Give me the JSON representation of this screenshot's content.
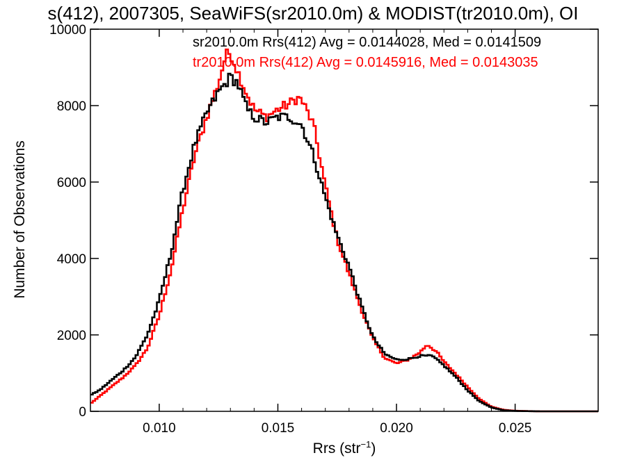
{
  "chart_data": {
    "type": "line",
    "title": "s(412), 2007305, SeaWiFS(sr2010.0m) & MODIST(tr2010.0m), OI",
    "xlabel": "Rrs (str",
    "xlabel_sup": "−1",
    "xlabel_close": ")",
    "ylabel": "Number of Observations",
    "xlim": [
      0.0071,
      0.0285
    ],
    "ylim": [
      0,
      10000
    ],
    "x_ticks": [
      {
        "value": 0.01,
        "label": "0.010"
      },
      {
        "value": 0.015,
        "label": "0.015"
      },
      {
        "value": 0.02,
        "label": "0.020"
      },
      {
        "value": 0.025,
        "label": "0.025"
      }
    ],
    "y_ticks": [
      {
        "value": 0,
        "label": "0"
      },
      {
        "value": 2000,
        "label": "2000"
      },
      {
        "value": 4000,
        "label": "4000"
      },
      {
        "value": 6000,
        "label": "6000"
      },
      {
        "value": 8000,
        "label": "8000"
      },
      {
        "value": 10000,
        "label": "10000"
      }
    ],
    "series": [
      {
        "name": "sr2010.0m Rrs(412) Avg = 0.0144028, Med = 0.0141509",
        "color": "#000000",
        "points": [
          [
            0.0071,
            420
          ],
          [
            0.0075,
            560
          ],
          [
            0.008,
            820
          ],
          [
            0.0085,
            1080
          ],
          [
            0.009,
            1420
          ],
          [
            0.0095,
            2000
          ],
          [
            0.01,
            2900
          ],
          [
            0.0105,
            4150
          ],
          [
            0.011,
            5800
          ],
          [
            0.0115,
            7000
          ],
          [
            0.012,
            7800
          ],
          [
            0.0125,
            8350
          ],
          [
            0.013,
            8750
          ],
          [
            0.0133,
            8600
          ],
          [
            0.0137,
            7900
          ],
          [
            0.014,
            7700
          ],
          [
            0.0145,
            7550
          ],
          [
            0.015,
            7700
          ],
          [
            0.0155,
            7700
          ],
          [
            0.016,
            7500
          ],
          [
            0.0165,
            6700
          ],
          [
            0.017,
            5600
          ],
          [
            0.0175,
            4600
          ],
          [
            0.018,
            3800
          ],
          [
            0.0185,
            2800
          ],
          [
            0.019,
            1950
          ],
          [
            0.0195,
            1500
          ],
          [
            0.02,
            1350
          ],
          [
            0.0205,
            1370
          ],
          [
            0.021,
            1450
          ],
          [
            0.0215,
            1450
          ],
          [
            0.022,
            1200
          ],
          [
            0.0225,
            900
          ],
          [
            0.023,
            550
          ],
          [
            0.0235,
            260
          ],
          [
            0.024,
            100
          ],
          [
            0.0245,
            30
          ],
          [
            0.025,
            10
          ],
          [
            0.026,
            0
          ],
          [
            0.0285,
            0
          ]
        ]
      },
      {
        "name": "tr2010.0m Rrs(412) Avg = 0.0145916, Med = 0.0143035",
        "color": "#ff0000",
        "points": [
          [
            0.0071,
            200
          ],
          [
            0.0075,
            400
          ],
          [
            0.008,
            650
          ],
          [
            0.0085,
            900
          ],
          [
            0.009,
            1200
          ],
          [
            0.0095,
            1650
          ],
          [
            0.01,
            2500
          ],
          [
            0.0105,
            3700
          ],
          [
            0.011,
            5300
          ],
          [
            0.0115,
            6700
          ],
          [
            0.012,
            7700
          ],
          [
            0.0125,
            8600
          ],
          [
            0.0128,
            9300
          ],
          [
            0.013,
            9400
          ],
          [
            0.0133,
            8900
          ],
          [
            0.0137,
            8300
          ],
          [
            0.014,
            7900
          ],
          [
            0.0145,
            7700
          ],
          [
            0.015,
            7900
          ],
          [
            0.0155,
            8050
          ],
          [
            0.0158,
            8200
          ],
          [
            0.016,
            8150
          ],
          [
            0.0165,
            7500
          ],
          [
            0.017,
            5900
          ],
          [
            0.0175,
            4500
          ],
          [
            0.018,
            3600
          ],
          [
            0.0185,
            2700
          ],
          [
            0.019,
            1900
          ],
          [
            0.0195,
            1400
          ],
          [
            0.02,
            1250
          ],
          [
            0.0205,
            1350
          ],
          [
            0.021,
            1550
          ],
          [
            0.0213,
            1750
          ],
          [
            0.0217,
            1550
          ],
          [
            0.022,
            1300
          ],
          [
            0.0225,
            980
          ],
          [
            0.023,
            640
          ],
          [
            0.0235,
            320
          ],
          [
            0.024,
            120
          ],
          [
            0.0245,
            40
          ],
          [
            0.025,
            15
          ],
          [
            0.026,
            0
          ],
          [
            0.0285,
            0
          ]
        ]
      }
    ]
  }
}
